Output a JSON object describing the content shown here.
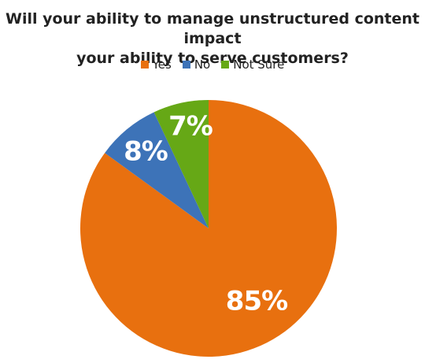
{
  "chart_data": {
    "type": "pie",
    "title_lines": [
      "Will your ability to manage unstructured content impact",
      "your ability to serve customers?"
    ],
    "legend_position": "top",
    "series": [
      {
        "name": "Yes",
        "value": 85,
        "label": "85%",
        "color": "#e8700f"
      },
      {
        "name": "No",
        "value": 8,
        "label": "8%",
        "color": "#3d73b8"
      },
      {
        "name": "Not Sure",
        "value": 7,
        "label": "7%",
        "color": "#66a816"
      }
    ]
  }
}
